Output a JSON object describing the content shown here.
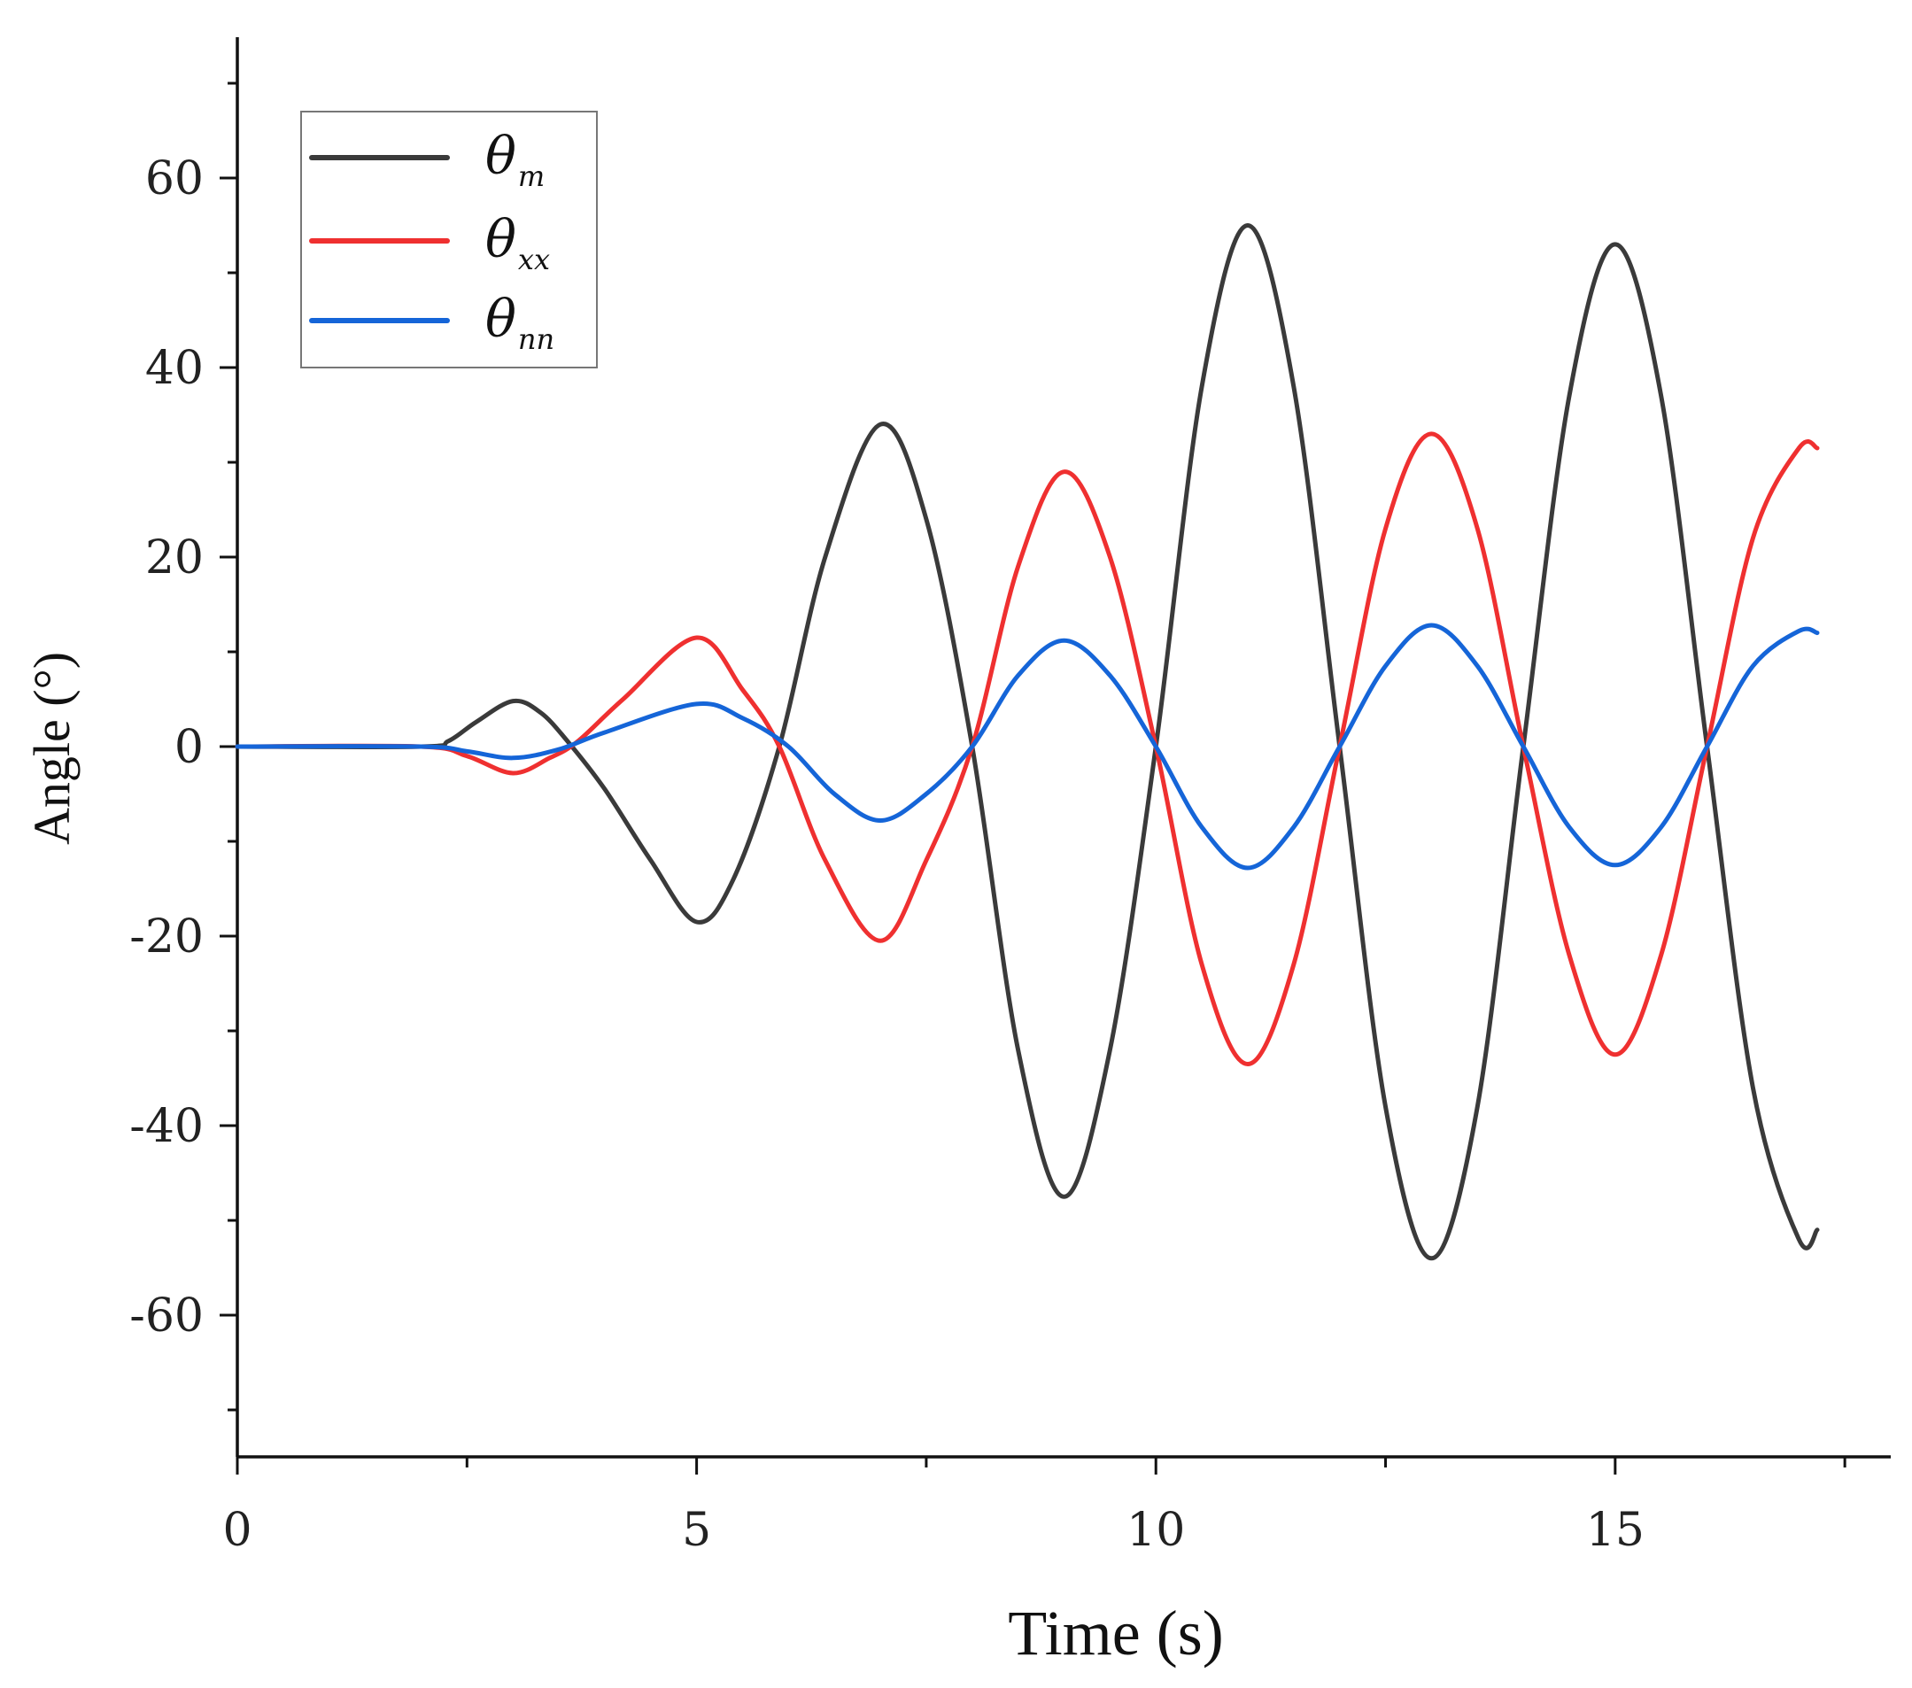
{
  "chart_data": {
    "type": "line",
    "title": "",
    "xlabel": "Time (s)",
    "ylabel": "Angle (°)",
    "xlim": [
      0,
      18
    ],
    "ylim": [
      -75,
      75
    ],
    "x_ticks": [
      "0",
      "5",
      "10",
      "15"
    ],
    "y_ticks": [
      "60",
      "40",
      "20",
      "0",
      "-20",
      "-40",
      "-60"
    ],
    "grid": false,
    "legend_position": "top-left",
    "series": [
      {
        "name": "θm",
        "symbol": "θ",
        "subscript": "m",
        "color": "#3a3a3a",
        "points": [
          [
            0,
            0
          ],
          [
            2,
            0
          ],
          [
            2.3,
            0.6
          ],
          [
            2.6,
            2.6
          ],
          [
            3.0,
            4.8
          ],
          [
            3.3,
            3.6
          ],
          [
            3.6,
            0.5
          ],
          [
            4.0,
            -4.5
          ],
          [
            4.5,
            -12
          ],
          [
            5.0,
            -18.5
          ],
          [
            5.4,
            -14
          ],
          [
            5.9,
            0
          ],
          [
            6.4,
            20
          ],
          [
            7.0,
            34
          ],
          [
            7.5,
            24
          ],
          [
            8.0,
            0
          ],
          [
            8.5,
            -32
          ],
          [
            9.0,
            -47.5
          ],
          [
            9.5,
            -32
          ],
          [
            10.0,
            0
          ],
          [
            10.5,
            38
          ],
          [
            11.0,
            55
          ],
          [
            11.5,
            38
          ],
          [
            12.0,
            0
          ],
          [
            12.5,
            -38
          ],
          [
            13.0,
            -54
          ],
          [
            13.5,
            -38
          ],
          [
            14.0,
            0
          ],
          [
            14.5,
            37
          ],
          [
            15.0,
            53
          ],
          [
            15.5,
            37
          ],
          [
            16.0,
            0
          ],
          [
            16.5,
            -36
          ],
          [
            17.0,
            -52
          ],
          [
            17.2,
            -51
          ]
        ]
      },
      {
        "name": "θxx",
        "symbol": "θ",
        "subscript": "xx",
        "color": "#ef3030",
        "points": [
          [
            0,
            0
          ],
          [
            2,
            0
          ],
          [
            2.5,
            -1
          ],
          [
            3.0,
            -2.8
          ],
          [
            3.4,
            -1.2
          ],
          [
            3.7,
            0.5
          ],
          [
            4.2,
            5
          ],
          [
            5.0,
            11.5
          ],
          [
            5.5,
            6
          ],
          [
            5.9,
            0
          ],
          [
            6.4,
            -12
          ],
          [
            7.0,
            -20.5
          ],
          [
            7.5,
            -12
          ],
          [
            8.0,
            0
          ],
          [
            8.5,
            19
          ],
          [
            9.0,
            29
          ],
          [
            9.5,
            20
          ],
          [
            10.0,
            0
          ],
          [
            10.5,
            -23
          ],
          [
            11.0,
            -33.5
          ],
          [
            11.5,
            -23
          ],
          [
            12.0,
            0
          ],
          [
            12.5,
            23
          ],
          [
            13.0,
            33
          ],
          [
            13.5,
            23
          ],
          [
            14.0,
            0
          ],
          [
            14.5,
            -22
          ],
          [
            15.0,
            -32.5
          ],
          [
            15.5,
            -22
          ],
          [
            16.0,
            0
          ],
          [
            16.5,
            22
          ],
          [
            17.0,
            31.5
          ],
          [
            17.2,
            31.5
          ]
        ]
      },
      {
        "name": "θnn",
        "symbol": "θ",
        "subscript": "nn",
        "color": "#1565d8",
        "points": [
          [
            0,
            0
          ],
          [
            2,
            0
          ],
          [
            2.5,
            -0.5
          ],
          [
            3.0,
            -1.2
          ],
          [
            3.5,
            -0.3
          ],
          [
            4.0,
            1.5
          ],
          [
            5.0,
            4.5
          ],
          [
            5.5,
            3
          ],
          [
            6.0,
            0
          ],
          [
            6.5,
            -5
          ],
          [
            7.0,
            -7.8
          ],
          [
            7.5,
            -5
          ],
          [
            8.0,
            0
          ],
          [
            8.5,
            7.5
          ],
          [
            9.0,
            11.2
          ],
          [
            9.5,
            7.5
          ],
          [
            10.0,
            0
          ],
          [
            10.5,
            -8.5
          ],
          [
            11.0,
            -12.8
          ],
          [
            11.5,
            -8.5
          ],
          [
            12.0,
            0
          ],
          [
            12.5,
            8.5
          ],
          [
            13.0,
            12.8
          ],
          [
            13.5,
            8.5
          ],
          [
            14.0,
            0
          ],
          [
            14.5,
            -8.5
          ],
          [
            15.0,
            -12.5
          ],
          [
            15.5,
            -8.5
          ],
          [
            16.0,
            0
          ],
          [
            16.5,
            8.5
          ],
          [
            17.0,
            12.2
          ],
          [
            17.2,
            12
          ]
        ]
      }
    ]
  }
}
